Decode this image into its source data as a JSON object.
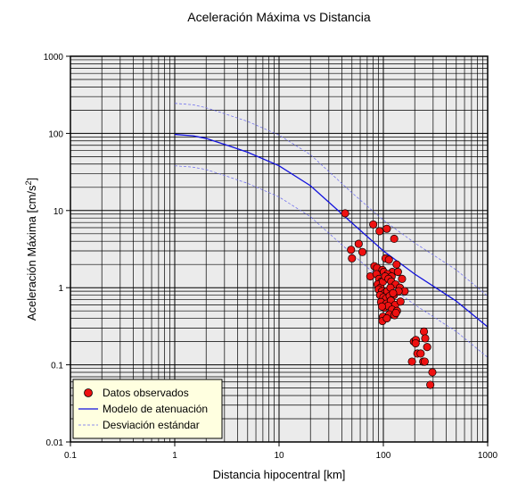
{
  "chart_data": {
    "type": "scatter",
    "title": "Aceleración Máxima vs Distancia",
    "xlabel": "Distancia hipocentral [km]",
    "ylabel": "Aceleración Máxima [cm/s²]",
    "ylabel_main": "Aceleración Máxima [cm/s",
    "ylabel_sup": "2",
    "ylabel_end": "]",
    "xscale": "log",
    "yscale": "log",
    "xlim": [
      0.1,
      1000
    ],
    "ylim": [
      0.01,
      1000
    ],
    "x_ticks": [
      0.1,
      1,
      10,
      100,
      1000
    ],
    "x_tick_labels": [
      "0.1",
      "1",
      "10",
      "100",
      "1000"
    ],
    "y_ticks": [
      0.01,
      0.1,
      1,
      10,
      100,
      1000
    ],
    "y_tick_labels": [
      "0.01",
      "0.1",
      "1",
      "10",
      "100",
      "1000"
    ],
    "grid": true,
    "legend_position": "bottom-left",
    "colors": {
      "points": "#ee1111",
      "model": "#1111dd",
      "deviation": "#6666ee",
      "legend_bg": "#ffffe0",
      "plot_bg": "#ebebeb"
    },
    "series": [
      {
        "name": "Datos observados",
        "kind": "points",
        "x": [
          43,
          49,
          50,
          58,
          63,
          75,
          80,
          92,
          82,
          108,
          127,
          87,
          98,
          105,
          113,
          122,
          134,
          86,
          91,
          96,
          101,
          110,
          120,
          138,
          151,
          88,
          94,
          99,
          104,
          112,
          119,
          131,
          144,
          160,
          90,
          97,
          103,
          109,
          117,
          126,
          140,
          93,
          100,
          106,
          115,
          124,
          95,
          107,
          118,
          130,
          146,
          102,
          111,
          121,
          135,
          99,
          114,
          128,
          98,
          132,
          97,
          108,
          245,
          252,
          196,
          205,
          263,
          212,
          228,
          188,
          241,
          249,
          204,
          295,
          282
        ],
        "y": [
          9.2,
          3.1,
          2.4,
          3.7,
          2.9,
          1.4,
          6.6,
          5.4,
          1.9,
          5.8,
          4.3,
          1.8,
          1.7,
          2.4,
          2.3,
          1.6,
          2.0,
          1.5,
          1.3,
          1.2,
          1.6,
          1.5,
          1.4,
          1.6,
          1.3,
          1.1,
          1.0,
          1.2,
          1.4,
          1.3,
          1.2,
          1.1,
          1.0,
          0.9,
          0.95,
          0.9,
          0.85,
          0.9,
          1.0,
          0.8,
          0.9,
          0.8,
          0.75,
          0.72,
          0.78,
          0.85,
          0.65,
          0.62,
          0.68,
          0.6,
          0.66,
          0.55,
          0.58,
          0.52,
          0.5,
          0.42,
          0.45,
          0.44,
          0.37,
          0.47,
          0.57,
          0.4,
          0.27,
          0.22,
          0.2,
          0.21,
          0.17,
          0.14,
          0.14,
          0.11,
          0.11,
          0.11,
          0.19,
          0.08,
          0.055
        ]
      },
      {
        "name": "Modelo de atenuación",
        "kind": "line",
        "style": "solid",
        "x": [
          1,
          1.5,
          2,
          3,
          5,
          10,
          20,
          50,
          100,
          200,
          500,
          1000
        ],
        "y": [
          97,
          93,
          86,
          72,
          57,
          38,
          21,
          6.9,
          3.0,
          1.5,
          0.67,
          0.31
        ]
      },
      {
        "name": "Desviación estándar",
        "kind": "line",
        "style": "dashed",
        "x": [
          1,
          1.5,
          2,
          3,
          5,
          10,
          20,
          50,
          100,
          200,
          500,
          1000
        ],
        "y": [
          245,
          235,
          215,
          180,
          143,
          95,
          53,
          17,
          7.5,
          3.8,
          1.7,
          0.78
        ]
      },
      {
        "kind": "line",
        "style": "dashed",
        "x": [
          1,
          1.5,
          2,
          3,
          5,
          10,
          20,
          50,
          100,
          200,
          500,
          1000
        ],
        "y": [
          38,
          36.5,
          34,
          28.5,
          22.5,
          15,
          8.3,
          2.75,
          1.2,
          0.6,
          0.27,
          0.125
        ]
      }
    ]
  }
}
